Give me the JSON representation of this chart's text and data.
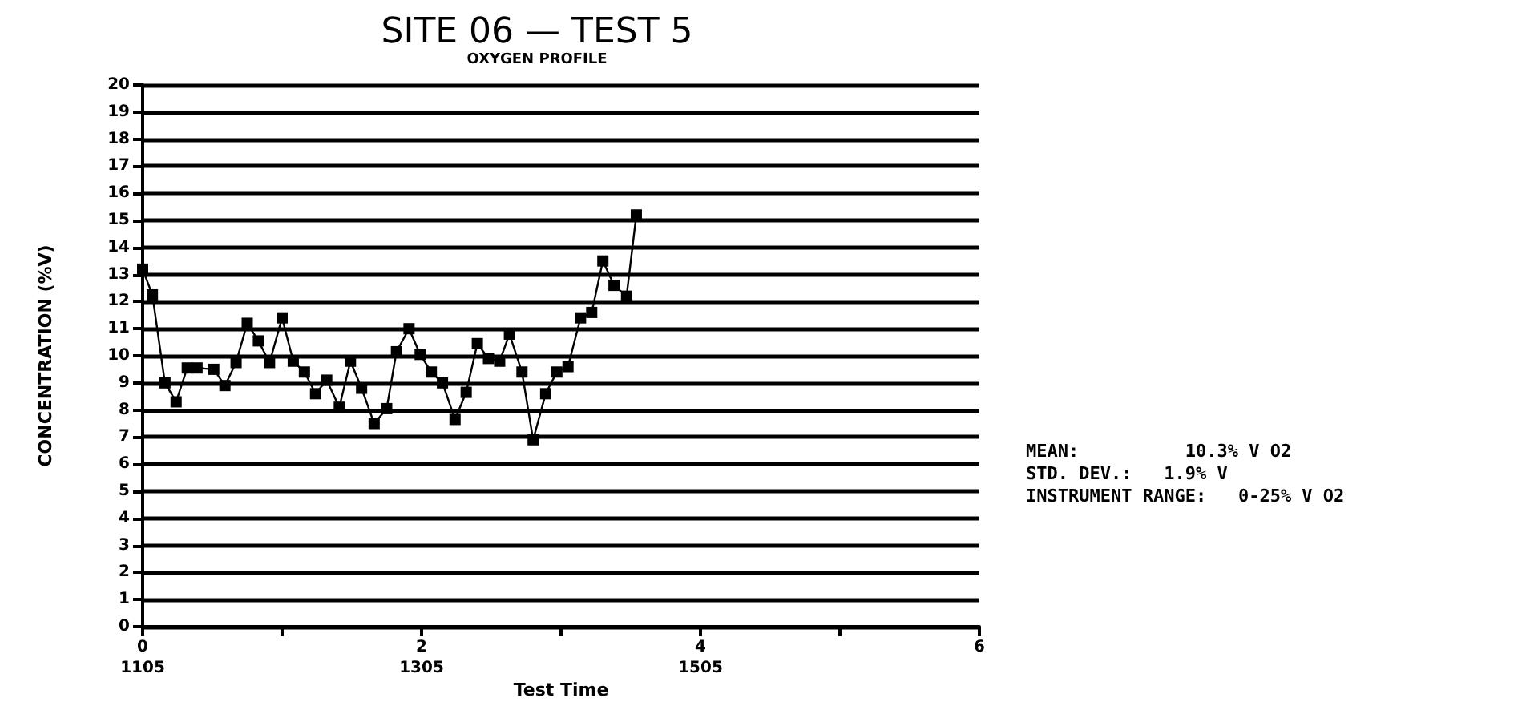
{
  "chart_data": {
    "type": "line",
    "title": "SITE 06 — TEST 5",
    "subtitle": "OXYGEN PROFILE",
    "xlabel": "Test Time",
    "ylabel": "CONCENTRATION (%V)",
    "x": [
      0,
      0.07,
      0.16,
      0.24,
      0.32,
      0.39,
      0.51,
      0.59,
      0.67,
      0.75,
      0.83,
      0.91,
      1.0,
      1.08,
      1.16,
      1.24,
      1.32,
      1.41,
      1.49,
      1.57,
      1.66,
      1.75,
      1.82,
      1.91,
      1.99,
      2.07,
      2.15,
      2.24,
      2.32,
      2.4,
      2.48,
      2.56,
      2.63,
      2.72,
      2.8,
      2.89,
      2.97,
      3.05,
      3.14,
      3.22,
      3.3,
      3.38,
      3.47,
      3.54
    ],
    "series": [
      {
        "color": "#000000",
        "values": [
          13.2,
          12.25,
          9.0,
          8.3,
          9.55,
          9.55,
          9.5,
          8.9,
          9.75,
          11.2,
          10.55,
          9.75,
          11.4,
          9.8,
          9.4,
          8.6,
          9.1,
          8.1,
          9.8,
          8.8,
          7.5,
          8.05,
          10.15,
          11.0,
          10.05,
          9.4,
          9.0,
          7.65,
          8.65,
          10.45,
          9.9,
          9.8,
          10.8,
          9.4,
          6.9,
          8.6,
          9.4,
          9.6,
          11.4,
          11.6,
          13.5,
          12.6,
          12.2,
          15.2
        ]
      }
    ],
    "xlim": [
      0,
      6
    ],
    "xticks": [
      0,
      {
        "value": 1,
        "label": null
      },
      2,
      {
        "value": 3,
        "label": null
      },
      4,
      {
        "value": 5,
        "label": null
      },
      6
    ],
    "x2lim": [
      1105,
      1705
    ],
    "x2ticks": [
      1105,
      1305,
      1505
    ],
    "ylim": [
      0,
      20
    ],
    "yticks": [
      0,
      1,
      2,
      3,
      4,
      5,
      6,
      7,
      8,
      9,
      10,
      11,
      12,
      13,
      14,
      15,
      16,
      17,
      18,
      19,
      20
    ],
    "grid": "y",
    "marker": "square",
    "line_style": "solid",
    "annotations": [
      "MEAN:          10.3% V O2",
      "STD. DEV.:   1.9% V",
      "INSTRUMENT RANGE:   0-25% V O2"
    ]
  }
}
